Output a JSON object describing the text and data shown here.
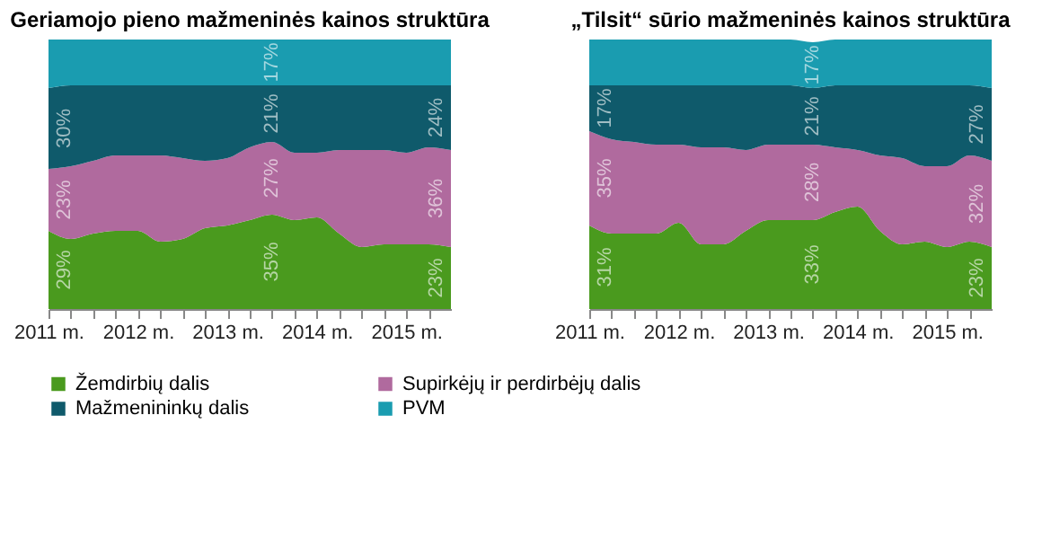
{
  "chart_data": [
    {
      "type": "area",
      "stacked": true,
      "title": "Geriamojo pieno mažmeninės kainos struktūra",
      "x": [
        2011,
        2011.25,
        2011.5,
        2011.75,
        2012,
        2012.25,
        2012.5,
        2012.75,
        2013,
        2013.25,
        2013.5,
        2013.75,
        2014,
        2014.25,
        2014.5,
        2014.75,
        2015,
        2015.25,
        2015.5
      ],
      "series": [
        {
          "name": "Žemdirbių dalis",
          "color": "#4a9a1e",
          "values": [
            29,
            26,
            28,
            29,
            29,
            25,
            26,
            30,
            31,
            33,
            35,
            33,
            34,
            28,
            23,
            24,
            24,
            24,
            23
          ],
          "value_labels": [
            "29%",
            null,
            null,
            null,
            null,
            null,
            null,
            null,
            null,
            null,
            "35%",
            null,
            null,
            null,
            null,
            null,
            null,
            null,
            "23%"
          ]
        },
        {
          "name": "Supirkėjų ir perdirbėjų dalis",
          "color": "#b06a9e",
          "values": [
            23,
            27,
            27,
            28,
            28,
            32,
            30,
            25,
            25,
            27,
            27,
            25,
            24,
            31,
            36,
            35,
            34,
            36,
            36
          ],
          "value_labels": [
            "23%",
            null,
            null,
            null,
            null,
            null,
            null,
            null,
            null,
            null,
            "27%",
            null,
            null,
            null,
            null,
            null,
            null,
            null,
            "36%"
          ]
        },
        {
          "name": "Mažmenininkų dalis",
          "color": "#0f5a6b",
          "values": [
            30,
            30,
            28,
            26,
            26,
            26,
            27,
            28,
            27,
            23,
            21,
            25,
            25,
            24,
            24,
            24,
            25,
            23,
            24
          ],
          "value_labels": [
            "30%",
            null,
            null,
            null,
            null,
            null,
            null,
            null,
            null,
            null,
            "21%",
            null,
            null,
            null,
            null,
            null,
            null,
            null,
            "24%"
          ]
        },
        {
          "name": "PVM",
          "color": "#1a9cb0",
          "values": [
            18,
            17,
            17,
            17,
            17,
            17,
            17,
            17,
            17,
            17,
            17,
            17,
            17,
            17,
            17,
            17,
            17,
            17,
            17
          ],
          "value_labels": [
            null,
            null,
            null,
            null,
            null,
            null,
            null,
            null,
            null,
            null,
            "17%",
            null,
            null,
            null,
            null,
            null,
            null,
            null,
            null
          ]
        }
      ],
      "xlim": [
        2011,
        2015.5
      ],
      "xticks": [
        {
          "value": 2011,
          "label": "2011 m."
        },
        {
          "value": 2011.25,
          "label": null
        },
        {
          "value": 2011.5,
          "label": null
        },
        {
          "value": 2011.75,
          "label": null
        },
        {
          "value": 2012,
          "label": "2012 m."
        },
        {
          "value": 2012.25,
          "label": null
        },
        {
          "value": 2012.5,
          "label": null
        },
        {
          "value": 2012.75,
          "label": null
        },
        {
          "value": 2013,
          "label": "2013 m."
        },
        {
          "value": 2013.25,
          "label": null
        },
        {
          "value": 2013.5,
          "label": null
        },
        {
          "value": 2013.75,
          "label": null
        },
        {
          "value": 2014,
          "label": "2014 m."
        },
        {
          "value": 2014.25,
          "label": null
        },
        {
          "value": 2014.5,
          "label": null
        },
        {
          "value": 2014.75,
          "label": null
        },
        {
          "value": 2015,
          "label": "2015 m."
        },
        {
          "value": 2015.25,
          "label": null
        }
      ],
      "tick_labels": "x",
      "grid": false,
      "legend": "bottom"
    },
    {
      "type": "area",
      "stacked": true,
      "title": "„Tilsit“ sūrio mažmeninės kainos struktūra",
      "x": [
        2011,
        2011.25,
        2011.5,
        2011.75,
        2012,
        2012.25,
        2012.5,
        2012.75,
        2013,
        2013.25,
        2013.5,
        2013.75,
        2014,
        2014.25,
        2014.5,
        2014.75,
        2015,
        2015.25,
        2015.5
      ],
      "series": [
        {
          "name": "Žemdirbių dalis",
          "color": "#4a9a1e",
          "values": [
            31,
            28,
            28,
            28,
            32,
            24,
            24,
            29,
            33,
            33,
            33,
            36,
            38,
            29,
            24,
            25,
            23,
            25,
            23
          ],
          "value_labels": [
            "31%",
            null,
            null,
            null,
            null,
            null,
            null,
            null,
            null,
            null,
            "33%",
            null,
            null,
            null,
            null,
            null,
            null,
            null,
            "23%"
          ]
        },
        {
          "name": "Supirkėjų ir perdirbėjų dalis",
          "color": "#b06a9e",
          "values": [
            35,
            35,
            34,
            33,
            29,
            36,
            36,
            30,
            28,
            28,
            28,
            24,
            21,
            28,
            32,
            28,
            30,
            32,
            32
          ],
          "value_labels": [
            "35%",
            null,
            null,
            null,
            null,
            null,
            null,
            null,
            null,
            null,
            "28%",
            null,
            null,
            null,
            null,
            null,
            null,
            null,
            "32%"
          ]
        },
        {
          "name": "Mažmenininkų dalis",
          "color": "#0f5a6b",
          "values": [
            17,
            20,
            21,
            22,
            22,
            23,
            23,
            24,
            22,
            22,
            21,
            23,
            24,
            26,
            27,
            30,
            30,
            26,
            27
          ],
          "value_labels": [
            "17%",
            null,
            null,
            null,
            null,
            null,
            null,
            null,
            null,
            null,
            "21%",
            null,
            null,
            null,
            null,
            null,
            null,
            null,
            "27%"
          ]
        },
        {
          "name": "PVM",
          "color": "#1a9cb0",
          "values": [
            17,
            17,
            17,
            17,
            17,
            17,
            17,
            17,
            17,
            17,
            17,
            17,
            17,
            17,
            17,
            17,
            17,
            17,
            18
          ],
          "value_labels": [
            null,
            null,
            null,
            null,
            null,
            null,
            null,
            null,
            null,
            null,
            "17%",
            null,
            null,
            null,
            null,
            null,
            null,
            null,
            null
          ]
        }
      ],
      "xlim": [
        2011,
        2015.5
      ],
      "xticks": [
        {
          "value": 2011,
          "label": "2011 m."
        },
        {
          "value": 2011.25,
          "label": null
        },
        {
          "value": 2011.5,
          "label": null
        },
        {
          "value": 2011.75,
          "label": null
        },
        {
          "value": 2012,
          "label": "2012 m."
        },
        {
          "value": 2012.25,
          "label": null
        },
        {
          "value": 2012.5,
          "label": null
        },
        {
          "value": 2012.75,
          "label": null
        },
        {
          "value": 2013,
          "label": "2013 m."
        },
        {
          "value": 2013.25,
          "label": null
        },
        {
          "value": 2013.5,
          "label": null
        },
        {
          "value": 2013.75,
          "label": null
        },
        {
          "value": 2014,
          "label": "2014 m."
        },
        {
          "value": 2014.25,
          "label": null
        },
        {
          "value": 2014.5,
          "label": null
        },
        {
          "value": 2014.75,
          "label": null
        },
        {
          "value": 2015,
          "label": "2015 m."
        },
        {
          "value": 2015.25,
          "label": null
        }
      ],
      "tick_labels": "x",
      "grid": false,
      "legend": "bottom"
    }
  ]
}
